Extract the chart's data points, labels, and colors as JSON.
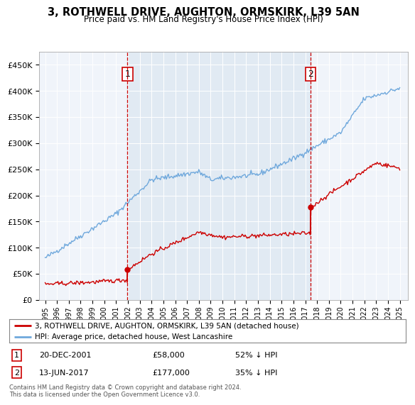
{
  "title": "3, ROTHWELL DRIVE, AUGHTON, ORMSKIRK, L39 5AN",
  "subtitle": "Price paid vs. HM Land Registry's House Price Index (HPI)",
  "legend_line1": "3, ROTHWELL DRIVE, AUGHTON, ORMSKIRK, L39 5AN (detached house)",
  "legend_line2": "HPI: Average price, detached house, West Lancashire",
  "annotation1_label": "1",
  "annotation1_date": "20-DEC-2001",
  "annotation1_price": "£58,000",
  "annotation1_hpi": "52% ↓ HPI",
  "annotation2_label": "2",
  "annotation2_date": "13-JUN-2017",
  "annotation2_price": "£177,000",
  "annotation2_hpi": "35% ↓ HPI",
  "footer": "Contains HM Land Registry data © Crown copyright and database right 2024.\nThis data is licensed under the Open Government Licence v3.0.",
  "sale1_year": 2001.97,
  "sale1_price": 58000,
  "sale2_year": 2017.45,
  "sale2_price": 177000,
  "hpi_color": "#6fa8dc",
  "shade_color": "#dce6f1",
  "price_color": "#cc0000",
  "bg_color": "#ffffff",
  "plot_bg": "#f0f4fa",
  "ylim_min": 0,
  "ylim_max": 475000,
  "yticks": [
    0,
    50000,
    100000,
    150000,
    200000,
    250000,
    300000,
    350000,
    400000,
    450000
  ],
  "xlabel_years": [
    1995,
    1996,
    1997,
    1998,
    1999,
    2000,
    2001,
    2002,
    2003,
    2004,
    2005,
    2006,
    2007,
    2008,
    2009,
    2010,
    2011,
    2012,
    2013,
    2014,
    2015,
    2016,
    2017,
    2018,
    2019,
    2020,
    2021,
    2022,
    2023,
    2024,
    2025
  ]
}
